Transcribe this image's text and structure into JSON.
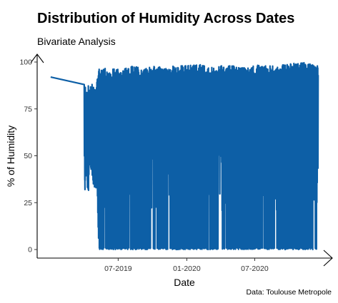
{
  "chart_data": {
    "type": "line",
    "title": "Distribution of Humidity Across Dates",
    "subtitle": "Bivariate Analysis",
    "caption": "Data: Toulouse Metropole",
    "xlabel": "Date",
    "ylabel": "% of Humidity",
    "xlim": [
      "2018-12-15",
      "2020-12-31"
    ],
    "ylim": [
      0,
      100
    ],
    "x_ticks": [
      {
        "date": "2019-07-01",
        "label": "07-2019"
      },
      {
        "date": "2020-01-01",
        "label": "01-2020"
      },
      {
        "date": "2020-07-01",
        "label": "07-2020"
      }
    ],
    "y_ticks": [
      0,
      25,
      50,
      75,
      100
    ],
    "grid": false,
    "line_color": "#0d5fa6",
    "series": [
      {
        "x": [
          "2019-01-01",
          "2019-04-01",
          "2019-04-03",
          "2019-04-08",
          "2019-04-12",
          "2019-04-15",
          "2019-04-20",
          "2019-04-25",
          "2019-05-01",
          "2019-05-05",
          "2019-05-10",
          "2019-05-15",
          "2019-05-20",
          "2019-05-25",
          "2019-06-01",
          "2019-06-10",
          "2019-06-20",
          "2019-07-01",
          "2019-08-01",
          "2019-09-01",
          "2019-10-01",
          "2019-11-01",
          "2019-12-01",
          "2020-01-01",
          "2020-02-01",
          "2020-03-01",
          "2020-04-01",
          "2020-05-01",
          "2020-06-01",
          "2020-07-01",
          "2020-08-01",
          "2020-09-01",
          "2020-10-01",
          "2020-11-01",
          "2020-12-01",
          "2020-12-18"
        ],
        "low": [
          92,
          46,
          32,
          38,
          24,
          45,
          40,
          35,
          30,
          33,
          0,
          0,
          0,
          0,
          0,
          0,
          0,
          0,
          0,
          0,
          0,
          0,
          0,
          0,
          0,
          0,
          0,
          0,
          0,
          0,
          0,
          0,
          0,
          0,
          0,
          0
        ],
        "high": [
          92,
          88,
          89,
          86,
          88,
          87,
          88,
          89,
          87,
          93,
          97,
          96,
          95,
          97,
          96,
          95,
          97,
          96,
          98,
          97,
          98,
          97,
          98,
          98,
          99,
          97,
          98,
          98,
          97,
          98,
          99,
          98,
          99,
          100,
          99,
          99
        ]
      }
    ]
  }
}
